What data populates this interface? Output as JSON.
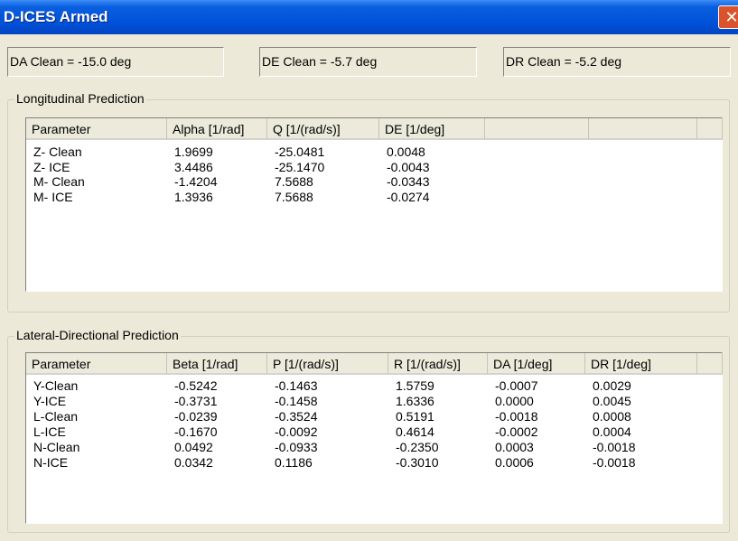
{
  "window": {
    "title": "D-ICES Armed"
  },
  "fields": [
    "DA Clean = -15.0 deg",
    "DE Clean = -5.7 deg",
    "DR Clean = -5.2 deg"
  ],
  "longitudinal": {
    "title": "Longitudinal Prediction",
    "headers": [
      "Parameter",
      "Alpha [1/rad]",
      "Q [1/(rad/s)]",
      "DE [1/deg]"
    ],
    "rows": [
      [
        "Z- Clean",
        "1.9699",
        "-25.0481",
        "0.0048"
      ],
      [
        "Z- ICE",
        "3.4486",
        "-25.1470",
        "-0.0043"
      ],
      [
        "M- Clean",
        "-1.4204",
        "7.5688",
        "-0.0343"
      ],
      [
        "M- ICE",
        "1.3936",
        "7.5688",
        "-0.0274"
      ]
    ]
  },
  "lateral": {
    "title": "Lateral-Directional Prediction",
    "headers": [
      "Parameter",
      "Beta [1/rad]",
      "P [1/(rad/s)]",
      "R [1/(rad/s)]",
      "DA [1/deg]",
      "DR [1/deg]"
    ],
    "rows": [
      [
        "Y-Clean",
        "-0.5242",
        "-0.1463",
        "1.5759",
        "-0.0007",
        "0.0029"
      ],
      [
        "Y-ICE",
        "-0.3731",
        "-0.1458",
        "1.6336",
        "0.0000",
        "0.0045"
      ],
      [
        "L-Clean",
        "-0.0239",
        "-0.3524",
        "0.5191",
        "-0.0018",
        "0.0008"
      ],
      [
        "L-ICE",
        "-0.1670",
        "-0.0092",
        "0.4614",
        "-0.0002",
        "0.0004"
      ],
      [
        "N-Clean",
        "0.0492",
        "-0.0933",
        "-0.2350",
        "0.0003",
        "-0.0018"
      ],
      [
        "N-ICE",
        "0.0342",
        "0.1186",
        "-0.3010",
        "0.0006",
        "-0.0018"
      ]
    ]
  }
}
